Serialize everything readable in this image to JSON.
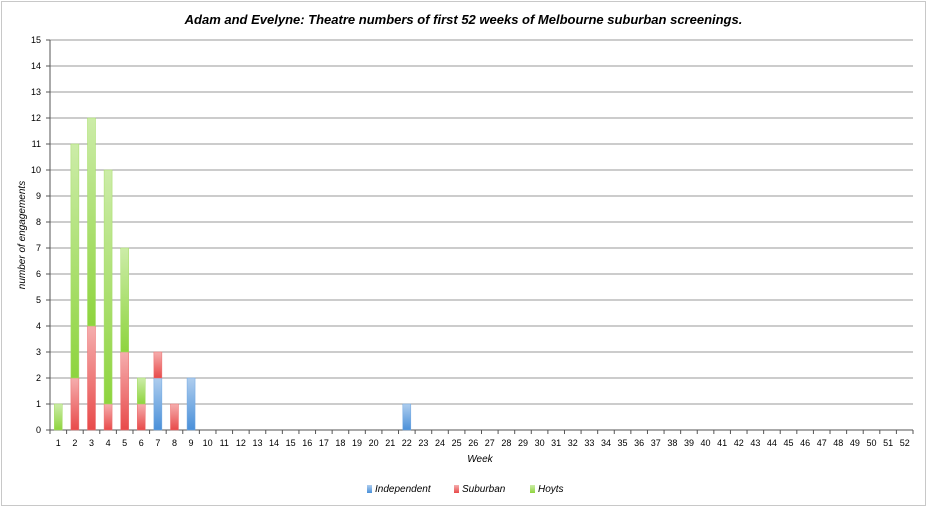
{
  "chart_data": {
    "type": "bar",
    "stacked": true,
    "title": "Adam and Evelyne: Theatre numbers of first 52 weeks of Melbourne suburban screenings.",
    "xlabel": "Week",
    "ylabel": "number of engagements",
    "ylim": [
      0,
      15
    ],
    "yticks": [
      "0",
      "1",
      "2",
      "3",
      "4",
      "5",
      "6",
      "7",
      "8",
      "9",
      "10",
      "11",
      "12",
      "13",
      "14",
      "15"
    ],
    "categories": [
      "1",
      "2",
      "3",
      "4",
      "5",
      "6",
      "7",
      "8",
      "9",
      "10",
      "11",
      "12",
      "13",
      "14",
      "15",
      "16",
      "17",
      "18",
      "19",
      "20",
      "21",
      "22",
      "23",
      "24",
      "25",
      "26",
      "27",
      "28",
      "29",
      "30",
      "31",
      "32",
      "33",
      "34",
      "35",
      "36",
      "37",
      "38",
      "39",
      "40",
      "41",
      "42",
      "43",
      "44",
      "45",
      "46",
      "47",
      "48",
      "49",
      "50",
      "51",
      "52"
    ],
    "grid": true,
    "legend_position": "bottom",
    "series": [
      {
        "name": "Independent",
        "color": "#4a90d9",
        "values": [
          0,
          0,
          0,
          0,
          0,
          0,
          2,
          0,
          2,
          0,
          0,
          0,
          0,
          0,
          0,
          0,
          0,
          0,
          0,
          0,
          0,
          1,
          0,
          0,
          0,
          0,
          0,
          0,
          0,
          0,
          0,
          0,
          0,
          0,
          0,
          0,
          0,
          0,
          0,
          0,
          0,
          0,
          0,
          0,
          0,
          0,
          0,
          0,
          0,
          0,
          0,
          0
        ]
      },
      {
        "name": "Suburban",
        "color": "#e84a4a",
        "values": [
          0,
          2,
          4,
          1,
          3,
          1,
          1,
          1,
          0,
          0,
          0,
          0,
          0,
          0,
          0,
          0,
          0,
          0,
          0,
          0,
          0,
          0,
          0,
          0,
          0,
          0,
          0,
          0,
          0,
          0,
          0,
          0,
          0,
          0,
          0,
          0,
          0,
          0,
          0,
          0,
          0,
          0,
          0,
          0,
          0,
          0,
          0,
          0,
          0,
          0,
          0,
          0
        ]
      },
      {
        "name": "Hoyts",
        "color": "#8ed43e",
        "values": [
          1,
          9,
          8,
          9,
          4,
          1,
          0,
          0,
          0,
          0,
          0,
          0,
          0,
          0,
          0,
          0,
          0,
          0,
          0,
          0,
          0,
          0,
          0,
          0,
          0,
          0,
          0,
          0,
          0,
          0,
          0,
          0,
          0,
          0,
          0,
          0,
          0,
          0,
          0,
          0,
          0,
          0,
          0,
          0,
          0,
          0,
          0,
          0,
          0,
          0,
          0,
          0
        ]
      }
    ]
  }
}
